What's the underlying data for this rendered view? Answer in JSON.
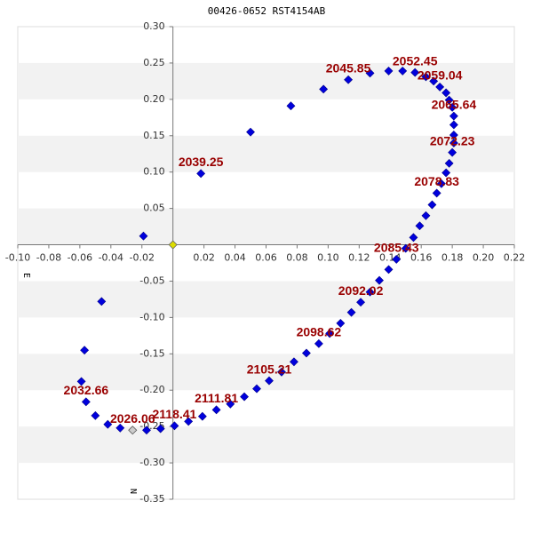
{
  "chart_data": {
    "type": "scatter",
    "title": "00426-0652 RST4154AB",
    "xlabel": "E",
    "ylabel": "N",
    "xlim": [
      -0.1,
      0.22
    ],
    "ylim": [
      -0.35,
      0.3
    ],
    "xticks": [
      {
        "value": -0.1,
        "label": "-0.10"
      },
      -0.08,
      -0.06,
      -0.04,
      -0.02,
      0.02,
      0.04,
      0.06,
      0.08,
      {
        "value": 0.1,
        "label": "0.10"
      },
      0.12,
      0.14,
      0.16,
      0.18,
      {
        "value": 0.2,
        "label": "0.20"
      },
      0.22
    ],
    "yticks": [
      {
        "value": 0.3,
        "label": "0.30"
      },
      0.25,
      {
        "value": 0.2,
        "label": "0.20"
      },
      0.15,
      {
        "value": 0.1,
        "label": "0.10"
      },
      0.05,
      -0.05,
      {
        "value": -0.1,
        "label": "-0.10"
      },
      -0.15,
      {
        "value": -0.2,
        "label": "-0.20"
      },
      -0.25,
      {
        "value": -0.3,
        "label": "-0.30"
      },
      -0.35
    ],
    "bands": true,
    "color": "#0000dd",
    "x": [
      -0.019,
      0.018,
      0.05,
      0.076,
      0.097,
      0.113,
      0.127,
      0.139,
      0.148,
      0.156,
      0.163,
      0.168,
      0.172,
      0.176,
      0.178,
      0.18,
      0.181,
      0.181,
      0.181,
      0.181,
      0.18,
      0.178,
      0.176,
      0.173,
      0.17,
      0.167,
      0.163,
      0.159,
      0.155,
      0.15,
      0.144,
      0.139,
      0.133,
      0.127,
      0.121,
      0.115,
      0.108,
      0.101,
      0.094,
      0.086,
      0.078,
      0.07,
      0.062,
      0.054,
      0.046,
      0.037,
      0.028,
      0.019,
      0.01,
      0.001,
      -0.008,
      -0.017,
      -0.034,
      -0.042,
      -0.05,
      -0.056,
      -0.059,
      -0.057,
      -0.046
    ],
    "y": [
      0.012,
      0.098,
      0.155,
      0.191,
      0.214,
      0.227,
      0.236,
      0.239,
      0.239,
      0.237,
      0.231,
      0.225,
      0.217,
      0.209,
      0.199,
      0.189,
      0.177,
      0.165,
      0.151,
      0.14,
      0.127,
      0.112,
      0.099,
      0.084,
      0.071,
      0.055,
      0.04,
      0.026,
      0.01,
      -0.005,
      -0.02,
      -0.034,
      -0.049,
      -0.065,
      -0.079,
      -0.093,
      -0.108,
      -0.122,
      -0.136,
      -0.149,
      -0.161,
      -0.175,
      -0.187,
      -0.198,
      -0.209,
      -0.219,
      -0.227,
      -0.236,
      -0.243,
      -0.249,
      -0.253,
      -0.255,
      -0.252,
      -0.247,
      -0.235,
      -0.216,
      -0.188,
      -0.145,
      -0.078
    ],
    "first_point": {
      "x": -0.026,
      "y": -0.255,
      "color": "#cccccc"
    },
    "origin_marker": {
      "x": 0,
      "y": 0,
      "color": "#dddd00"
    },
    "annotations": [
      {
        "text": "2039.25",
        "x": 0.018,
        "y": 0.098
      },
      {
        "text": "2045.85",
        "x": 0.113,
        "y": 0.227
      },
      {
        "text": "2052.45",
        "x": 0.156,
        "y": 0.237
      },
      {
        "text": "2059.04",
        "x": 0.172,
        "y": 0.217
      },
      {
        "text": "2065.64",
        "x": 0.181,
        "y": 0.177
      },
      {
        "text": "2072.23",
        "x": 0.18,
        "y": 0.127
      },
      {
        "text": "2078.83",
        "x": 0.17,
        "y": 0.071
      },
      {
        "text": "2085.43",
        "x": 0.144,
        "y": -0.02
      },
      {
        "text": "2092.02",
        "x": 0.121,
        "y": -0.079
      },
      {
        "text": "2098.62",
        "x": 0.094,
        "y": -0.136
      },
      {
        "text": "2105.21",
        "x": 0.062,
        "y": -0.187
      },
      {
        "text": "2111.81",
        "x": 0.028,
        "y": -0.227
      },
      {
        "text": "2118.41",
        "x": 0.001,
        "y": -0.249
      },
      {
        "text": "2026.06",
        "x": -0.026,
        "y": -0.255
      },
      {
        "text": "2032.66",
        "x": -0.056,
        "y": -0.216
      }
    ]
  }
}
